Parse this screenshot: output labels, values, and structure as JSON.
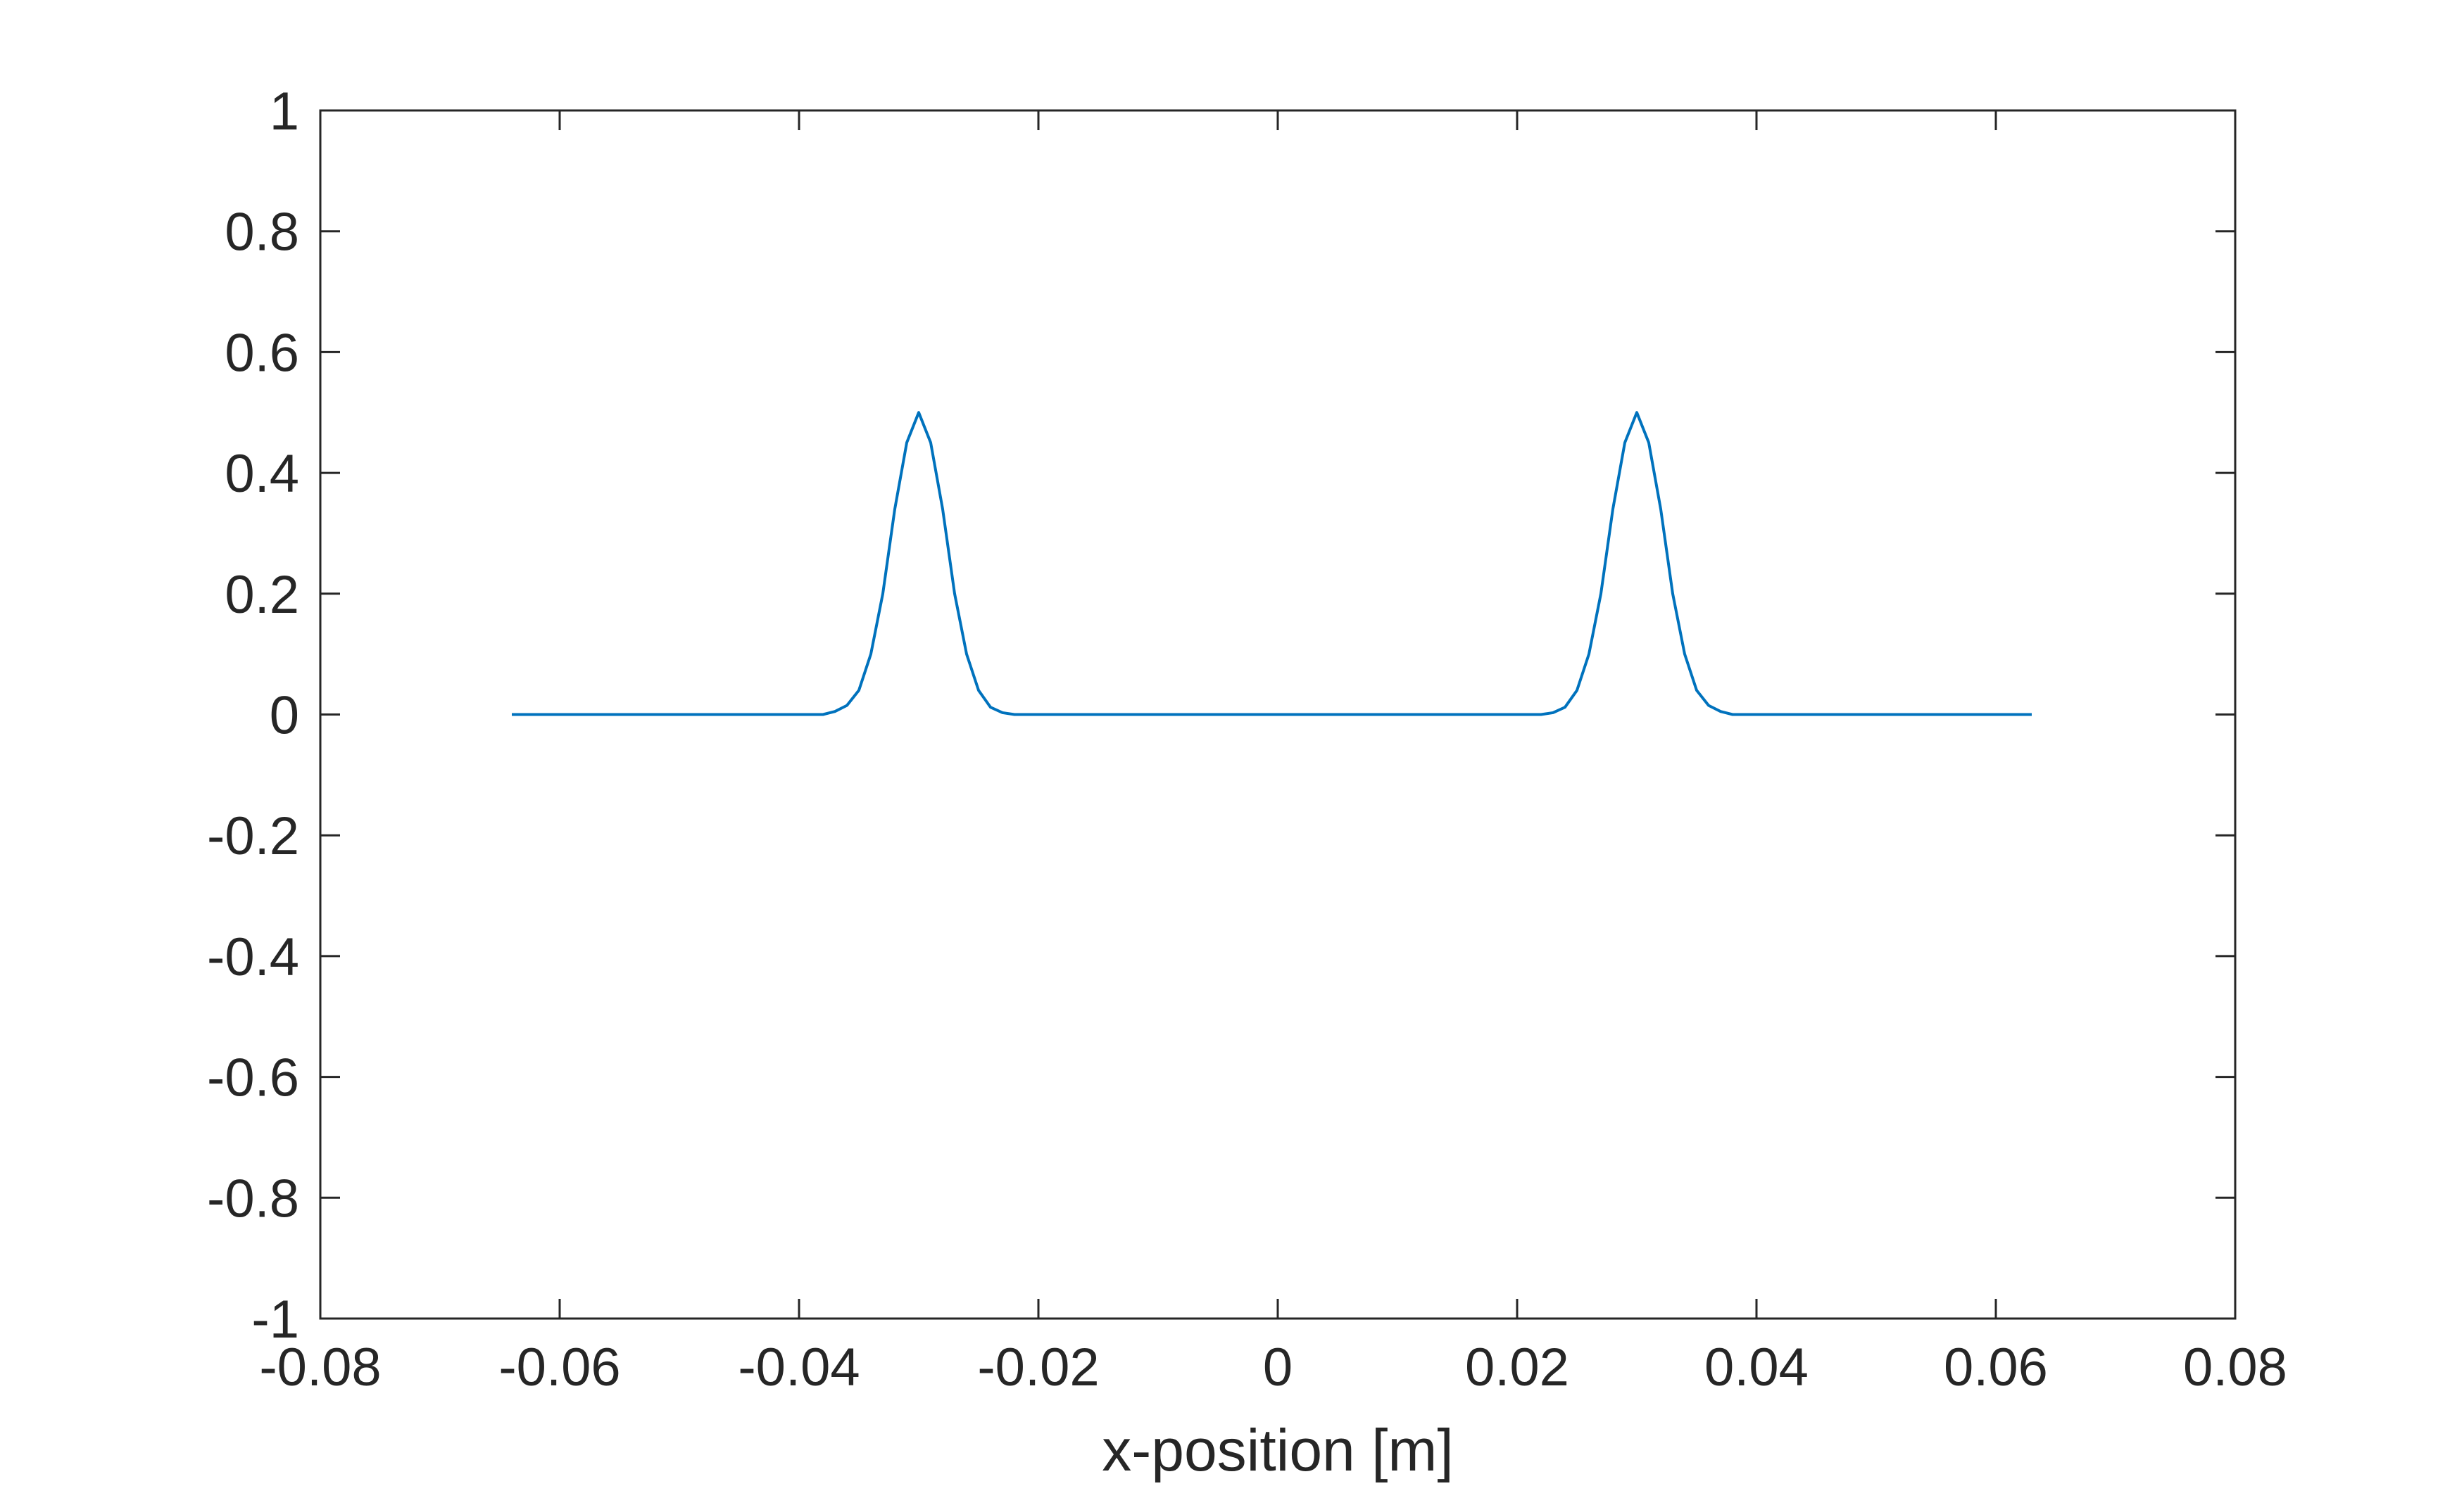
{
  "chart_data": {
    "type": "line",
    "title": "",
    "xlabel": "x-position [m]",
    "ylabel": "",
    "xlim": [
      -0.08,
      0.08
    ],
    "ylim": [
      -1,
      1
    ],
    "grid": false,
    "x_ticks": [
      -0.08,
      -0.06,
      -0.04,
      -0.02,
      0,
      0.02,
      0.04,
      0.06,
      0.08
    ],
    "x_tick_labels": [
      "-0.08",
      "-0.06",
      "-0.04",
      "-0.02",
      "0",
      "0.02",
      "0.04",
      "0.06",
      "0.08"
    ],
    "y_ticks": [
      -1,
      -0.8,
      -0.6,
      -0.4,
      -0.2,
      0,
      0.2,
      0.4,
      0.6,
      0.8,
      1
    ],
    "y_tick_labels": [
      "-1",
      "-0.8",
      "-0.6",
      "-0.4",
      "-0.2",
      "0",
      "0.2",
      "0.4",
      "0.6",
      "0.8",
      "1"
    ],
    "series": [
      {
        "color": "#0072BD",
        "x": [
          -0.064,
          -0.04,
          -0.038,
          -0.037,
          -0.036,
          -0.035,
          -0.034,
          -0.033,
          -0.032,
          -0.031,
          -0.03,
          -0.029,
          -0.028,
          -0.027,
          -0.026,
          -0.025,
          -0.024,
          -0.023,
          -0.022,
          -0.02,
          0.0,
          0.02,
          0.022,
          0.023,
          0.024,
          0.025,
          0.026,
          0.027,
          0.028,
          0.029,
          0.03,
          0.031,
          0.032,
          0.033,
          0.034,
          0.035,
          0.036,
          0.037,
          0.038,
          0.04,
          0.063
        ],
        "y": [
          0.0,
          0.0,
          0.0,
          0.005,
          0.015,
          0.04,
          0.1,
          0.2,
          0.34,
          0.45,
          0.5,
          0.45,
          0.34,
          0.2,
          0.1,
          0.04,
          0.012,
          0.003,
          0.0,
          0.0,
          0.0,
          0.0,
          0.0,
          0.003,
          0.012,
          0.04,
          0.1,
          0.2,
          0.34,
          0.45,
          0.5,
          0.45,
          0.34,
          0.2,
          0.1,
          0.04,
          0.015,
          0.005,
          0.0,
          0.0,
          0.0
        ]
      }
    ]
  }
}
